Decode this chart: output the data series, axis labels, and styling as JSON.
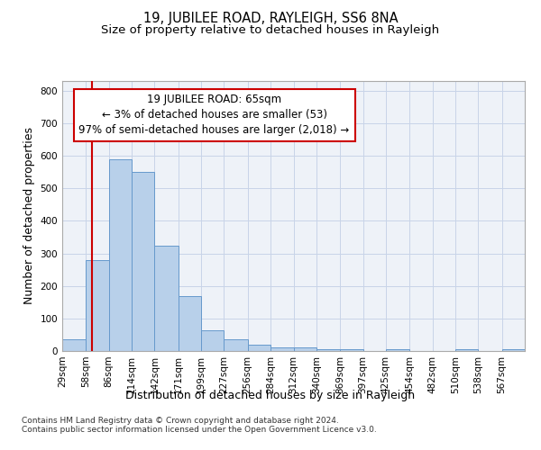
{
  "title": "19, JUBILEE ROAD, RAYLEIGH, SS6 8NA",
  "subtitle": "Size of property relative to detached houses in Rayleigh",
  "xlabel": "Distribution of detached houses by size in Rayleigh",
  "ylabel": "Number of detached properties",
  "footnote1": "Contains HM Land Registry data © Crown copyright and database right 2024.",
  "footnote2": "Contains public sector information licensed under the Open Government Licence v3.0.",
  "annotation_line1": "19 JUBILEE ROAD: 65sqm",
  "annotation_line2": "← 3% of detached houses are smaller (53)",
  "annotation_line3": "97% of semi-detached houses are larger (2,018) →",
  "bin_edges": [
    29,
    58,
    86,
    114,
    142,
    171,
    199,
    227,
    256,
    284,
    312,
    340,
    369,
    397,
    425,
    454,
    482,
    510,
    538,
    567,
    595
  ],
  "bar_heights": [
    35,
    280,
    590,
    550,
    325,
    170,
    65,
    35,
    20,
    10,
    10,
    5,
    5,
    0,
    5,
    0,
    0,
    5,
    0,
    5
  ],
  "bar_color": "#b8d0ea",
  "bar_edge_color": "#6699cc",
  "vline_x": 65,
  "vline_color": "#cc0000",
  "annotation_box_color": "#cc0000",
  "ylim": [
    0,
    830
  ],
  "yticks": [
    0,
    100,
    200,
    300,
    400,
    500,
    600,
    700,
    800
  ],
  "grid_color": "#c8d4e8",
  "bg_color": "#eef2f8",
  "title_fontsize": 10.5,
  "subtitle_fontsize": 9.5,
  "axis_label_fontsize": 9,
  "tick_fontsize": 7.5,
  "footnote_fontsize": 6.5,
  "annotation_fontsize": 8.5
}
